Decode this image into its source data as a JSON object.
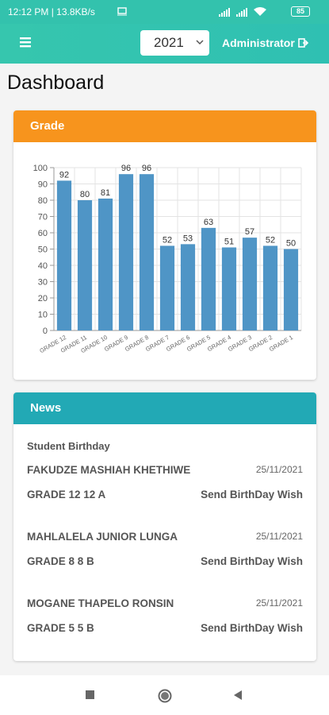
{
  "status_bar": {
    "time_speed": "12:12 PM | 13.8KB/s",
    "battery": "85"
  },
  "header": {
    "year": "2021",
    "user": "Administrator"
  },
  "page_title": "Dashboard",
  "chart_data": {
    "type": "bar",
    "title": "Grade",
    "categories": [
      "GRADE 12",
      "GRADE 11",
      "GRADE 10",
      "GRADE 9",
      "GRADE 8",
      "GRADE 7",
      "GRADE 6",
      "GRADE 5",
      "GRADE 4",
      "GRADE 3",
      "GRADE 2",
      "GRADE 1"
    ],
    "values": [
      92,
      80,
      81,
      96,
      96,
      52,
      53,
      63,
      51,
      57,
      52,
      50
    ],
    "color": "#4f95c6",
    "ylim": [
      0,
      100
    ],
    "yticks": [
      0,
      10,
      20,
      30,
      40,
      50,
      60,
      70,
      80,
      90,
      100
    ],
    "grid": true
  },
  "news": {
    "title": "News",
    "section": "Student Birthday",
    "items": [
      {
        "name": "FAKUDZE MASHIAH KHETHIWE",
        "date": "25/11/2021",
        "grade": "GRADE 12 12 A",
        "action": "Send BirthDay Wish"
      },
      {
        "name": "MAHLALELA JUNIOR LUNGA",
        "date": "25/11/2021",
        "grade": "GRADE 8 8 B",
        "action": "Send BirthDay Wish"
      },
      {
        "name": "MOGANE THAPELO RONSIN",
        "date": "25/11/2021",
        "grade": "GRADE 5 5 B",
        "action": "Send BirthDay Wish"
      }
    ]
  }
}
